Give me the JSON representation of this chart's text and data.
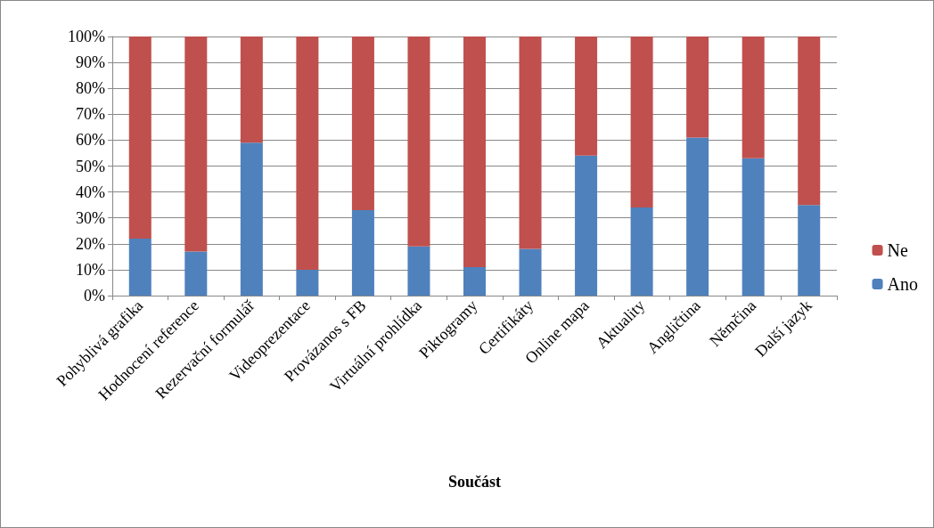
{
  "chart_data": {
    "type": "bar",
    "stacked": true,
    "xlabel": "Součást",
    "categories": [
      "Pohyblivá grafika",
      "Hodnocení reference",
      "Rezervační formulář",
      "Videoprezentace",
      "Provázanos s FB",
      "Virtuální prohlídka",
      "Piktogramy",
      "Certifikáty",
      "Online mapa",
      "Aktuality",
      "Angličtina",
      "Němčina",
      "Další jazyk"
    ],
    "series": [
      {
        "name": "Ano",
        "color": "#4f81bd",
        "values": [
          22,
          17,
          59,
          10,
          33,
          19,
          11,
          18,
          54,
          34,
          61,
          53,
          35
        ]
      },
      {
        "name": "Ne",
        "color": "#c0504d",
        "values": [
          78,
          83,
          41,
          90,
          67,
          81,
          89,
          82,
          46,
          66,
          39,
          47,
          65
        ]
      }
    ],
    "ylim": [
      0,
      100
    ],
    "yticks": [
      {
        "value": 0,
        "label": "0%"
      },
      {
        "value": 10,
        "label": "10%"
      },
      {
        "value": 20,
        "label": "20%"
      },
      {
        "value": 30,
        "label": "30%"
      },
      {
        "value": 40,
        "label": "40%"
      },
      {
        "value": 50,
        "label": "50%"
      },
      {
        "value": 60,
        "label": "60%"
      },
      {
        "value": 70,
        "label": "70%"
      },
      {
        "value": 80,
        "label": "80%"
      },
      {
        "value": 90,
        "label": "90%"
      },
      {
        "value": 100,
        "label": "100%"
      }
    ],
    "grid": "y",
    "legend": "right"
  }
}
